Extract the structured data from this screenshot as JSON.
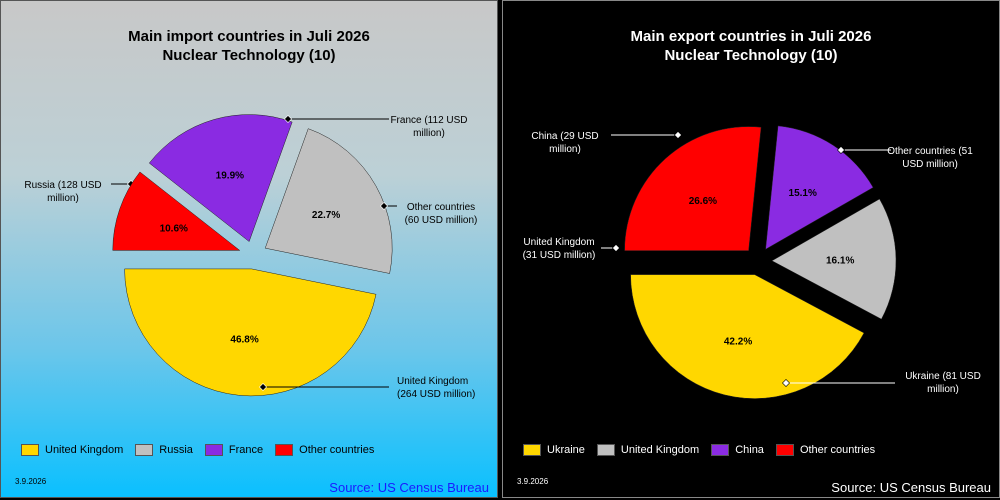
{
  "chart_data": [
    {
      "type": "pie",
      "title": [
        "Main import countries in Juli 2026",
        "Nuclear Technology (10)"
      ],
      "slices": [
        {
          "name": "United Kingdom",
          "percent": 46.8,
          "color": "#ffd700",
          "label": [
            "United Kingdom",
            "(264 USD million)"
          ]
        },
        {
          "name": "Russia",
          "percent": 22.7,
          "color": "#c0c0c0",
          "label": [
            "Russia (128 USD",
            "million)"
          ]
        },
        {
          "name": "France",
          "percent": 19.9,
          "color": "#8a2be2",
          "label": [
            "France (112 USD",
            "million)"
          ]
        },
        {
          "name": "Other countries",
          "percent": 10.6,
          "color": "#ff0000",
          "label": [
            "Other countries",
            "(60 USD million)"
          ]
        }
      ],
      "legend": [
        "United Kingdom",
        "Russia",
        "France",
        "Other countries"
      ],
      "legend_position": "bottom",
      "date": "3.9.2026",
      "source": "Source: US Census Bureau"
    },
    {
      "type": "pie",
      "title": [
        "Main export countries in Juli 2026",
        "Nuclear Technology (10)"
      ],
      "slices": [
        {
          "name": "Ukraine",
          "percent": 42.2,
          "color": "#ffd700",
          "label": [
            "Ukraine (81 USD",
            "million)"
          ]
        },
        {
          "name": "United Kingdom",
          "percent": 16.1,
          "color": "#c0c0c0",
          "label": [
            "United Kingdom",
            "(31 USD million)"
          ]
        },
        {
          "name": "China",
          "percent": 15.1,
          "color": "#8a2be2",
          "label": [
            "China (29 USD",
            "million)"
          ]
        },
        {
          "name": "Other countries",
          "percent": 26.6,
          "color": "#ff0000",
          "label": [
            "Other countries (51",
            "USD million)"
          ]
        }
      ],
      "legend": [
        "Ukraine",
        "United Kingdom",
        "China",
        "Other countries"
      ],
      "legend_position": "bottom",
      "date": "3.9.2026",
      "source": "Source: US Census Bureau"
    }
  ]
}
